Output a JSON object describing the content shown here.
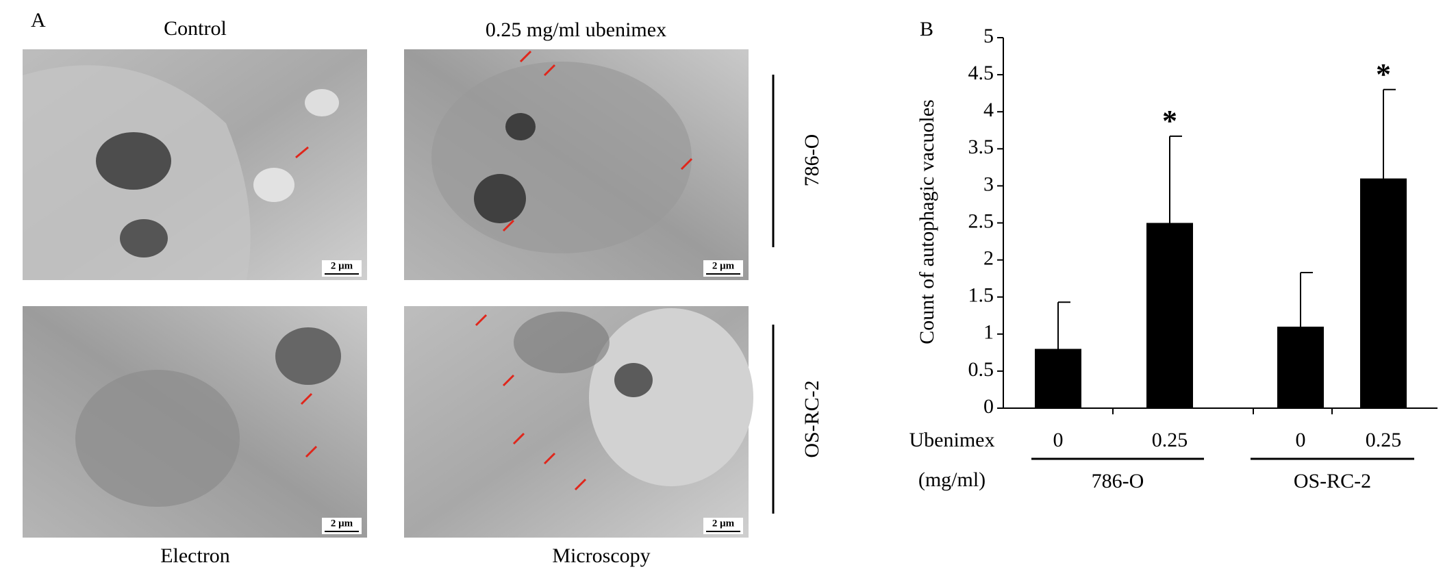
{
  "panel_a": {
    "label": "A",
    "column_titles": [
      "Control",
      "0.25 mg/ml ubenimex"
    ],
    "row_labels": [
      "786-O",
      "OS-RC-2"
    ],
    "bottom_labels": [
      "Electron",
      "Microscopy"
    ],
    "scale_bars": [
      "2 μm",
      "2 μm",
      "2 μm",
      "2 μm"
    ]
  },
  "chart_data": {
    "type": "bar",
    "panel_label": "B",
    "y_label": "Count of autophagic vacuoles",
    "x_label_lines": [
      "Ubenimex",
      "(mg/ml)"
    ],
    "categories": [
      "0",
      "0.25",
      "0",
      "0.25"
    ],
    "groups": [
      "786-O",
      "OS-RC-2"
    ],
    "series": [
      {
        "color": "#000000",
        "values": [
          0.8,
          2.5,
          1.1,
          3.1
        ],
        "errors": [
          0.63,
          1.17,
          0.73,
          1.2
        ]
      }
    ],
    "significance": [
      null,
      "*",
      null,
      "*"
    ],
    "ylim": [
      0,
      5
    ],
    "yticks": [
      0,
      0.5,
      1,
      1.5,
      2,
      2.5,
      3,
      3.5,
      4,
      4.5,
      5
    ]
  }
}
